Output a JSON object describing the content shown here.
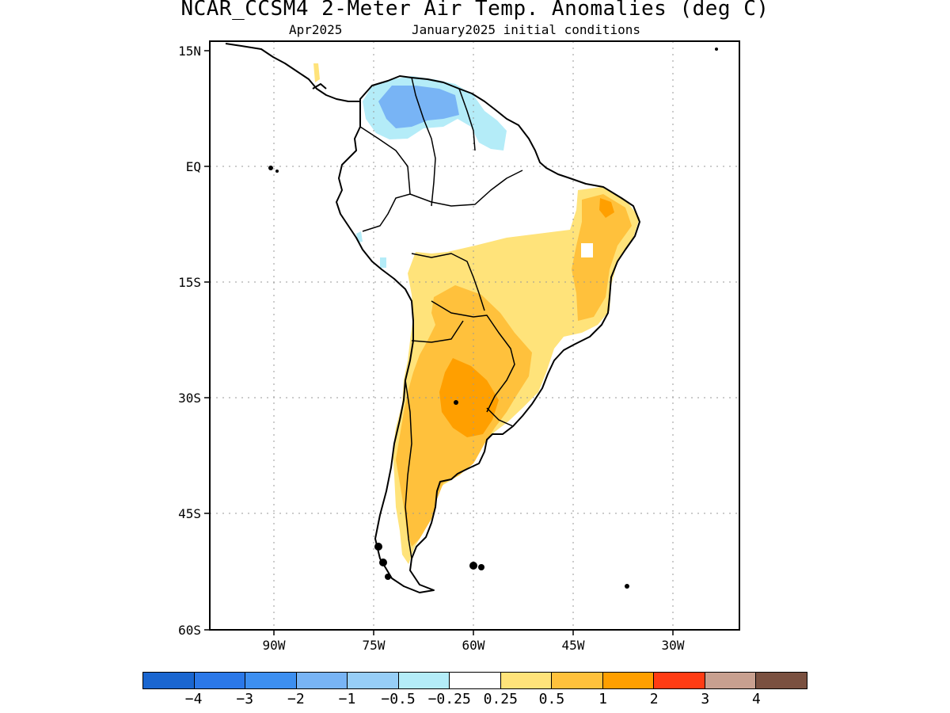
{
  "title": "NCAR_CCSM4 2-Meter Air Temp. Anomalies (deg C)",
  "subtitle_left": "Apr2025",
  "subtitle_right": "January2025 initial conditions",
  "map": {
    "lat_labels": [
      "15N",
      "EQ",
      "15S",
      "30S",
      "45S",
      "60S"
    ],
    "lon_labels": [
      "90W",
      "75W",
      "60W",
      "45W",
      "30W"
    ],
    "region": "South America",
    "gridlines": "dotted"
  },
  "legend": {
    "colors": [
      "#1a66d0",
      "#2b78e8",
      "#3d8ff0",
      "#78b4f5",
      "#97cef7",
      "#b4ecf8",
      "#ffffff",
      "#ffe37a",
      "#ffc13c",
      "#ff9f00",
      "#ff3c14",
      "#c8a090",
      "#7a5040"
    ],
    "labels": [
      "−4",
      "−3",
      "−2",
      "−1",
      "−0.5",
      "−0.25",
      "0.25",
      "0.5",
      "1",
      "2",
      "3",
      "4"
    ]
  }
}
